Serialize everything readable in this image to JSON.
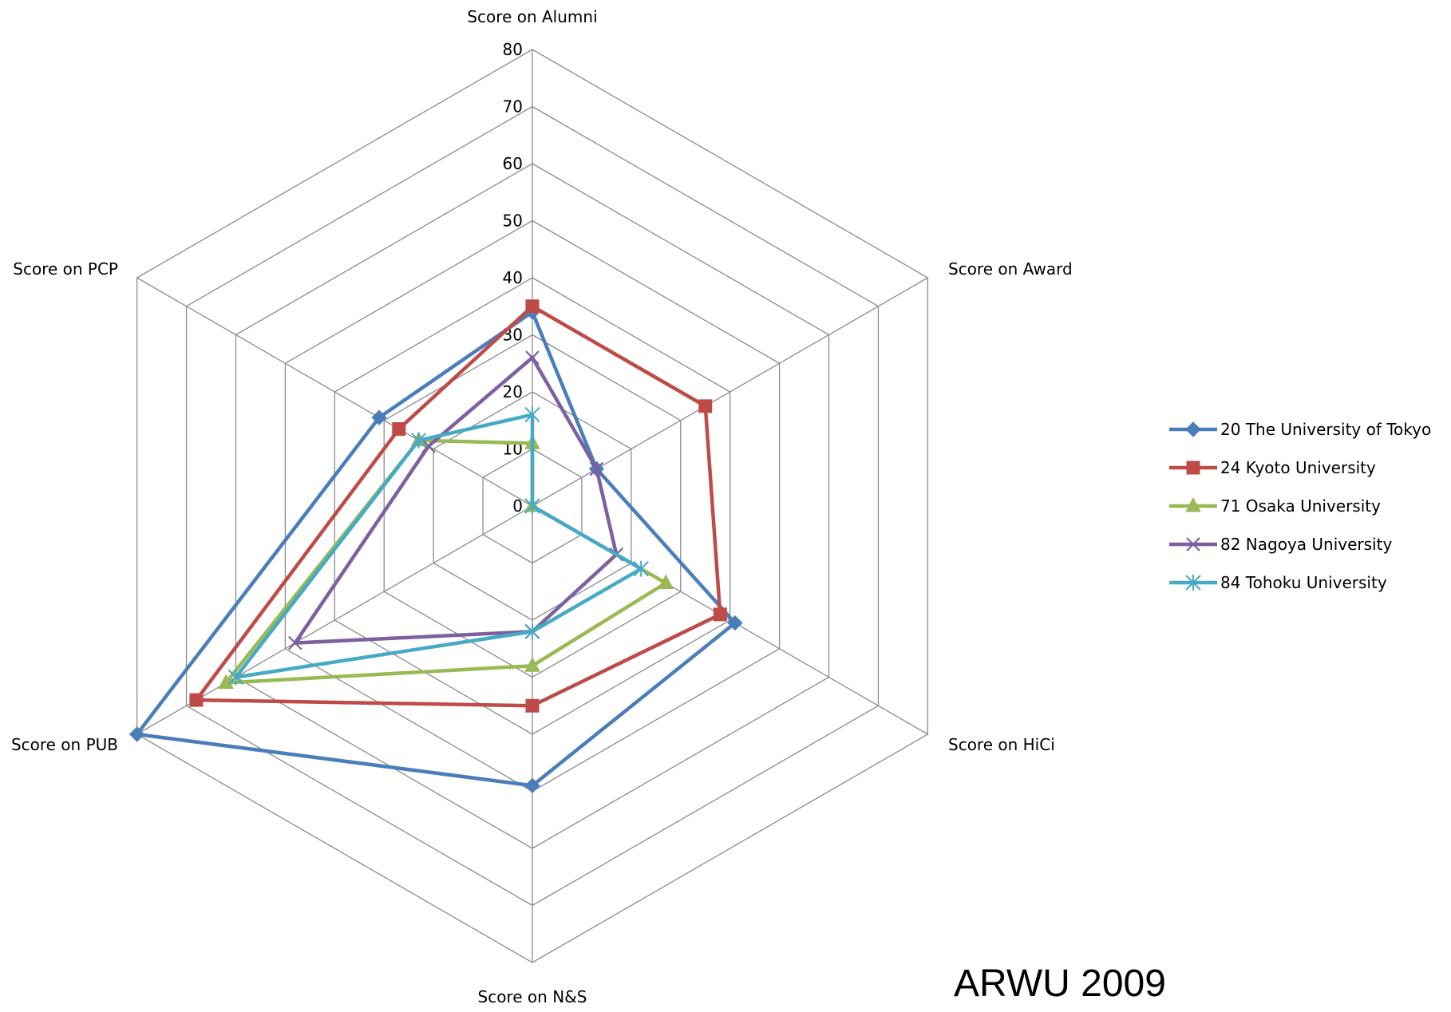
{
  "chart_data": {
    "type": "radar",
    "title": "",
    "axes": [
      "Score on Alumni",
      "Score on Award",
      "Score on HiCi",
      "Score on N&S",
      "Score on PUB",
      "Score on PCP"
    ],
    "r_ticks": [
      0,
      10,
      20,
      30,
      40,
      50,
      60,
      70,
      80
    ],
    "r_range": [
      0,
      80
    ],
    "grid": true,
    "legend_position": "right",
    "series": [
      {
        "name": "20 The University of Tokyo",
        "color": "#4a7ebb",
        "marker": "diamond",
        "values": [
          34,
          13,
          41,
          49,
          80,
          31
        ]
      },
      {
        "name": "24 Kyoto University",
        "color": "#be4b48",
        "marker": "square",
        "values": [
          35,
          35,
          38,
          35,
          68,
          27
        ]
      },
      {
        "name": "71 Osaka University",
        "color": "#98b954",
        "marker": "triangle",
        "values": [
          11,
          0,
          27,
          28,
          62,
          23
        ]
      },
      {
        "name": "82 Nagoya University",
        "color": "#7d60a0",
        "marker": "x",
        "values": [
          26,
          13,
          17,
          22,
          48,
          21
        ]
      },
      {
        "name": "84 Tohoku University",
        "color": "#46aac5",
        "marker": "star",
        "values": [
          16,
          0,
          22,
          22,
          60,
          23
        ]
      }
    ],
    "annotation": "ARWU 2009"
  }
}
